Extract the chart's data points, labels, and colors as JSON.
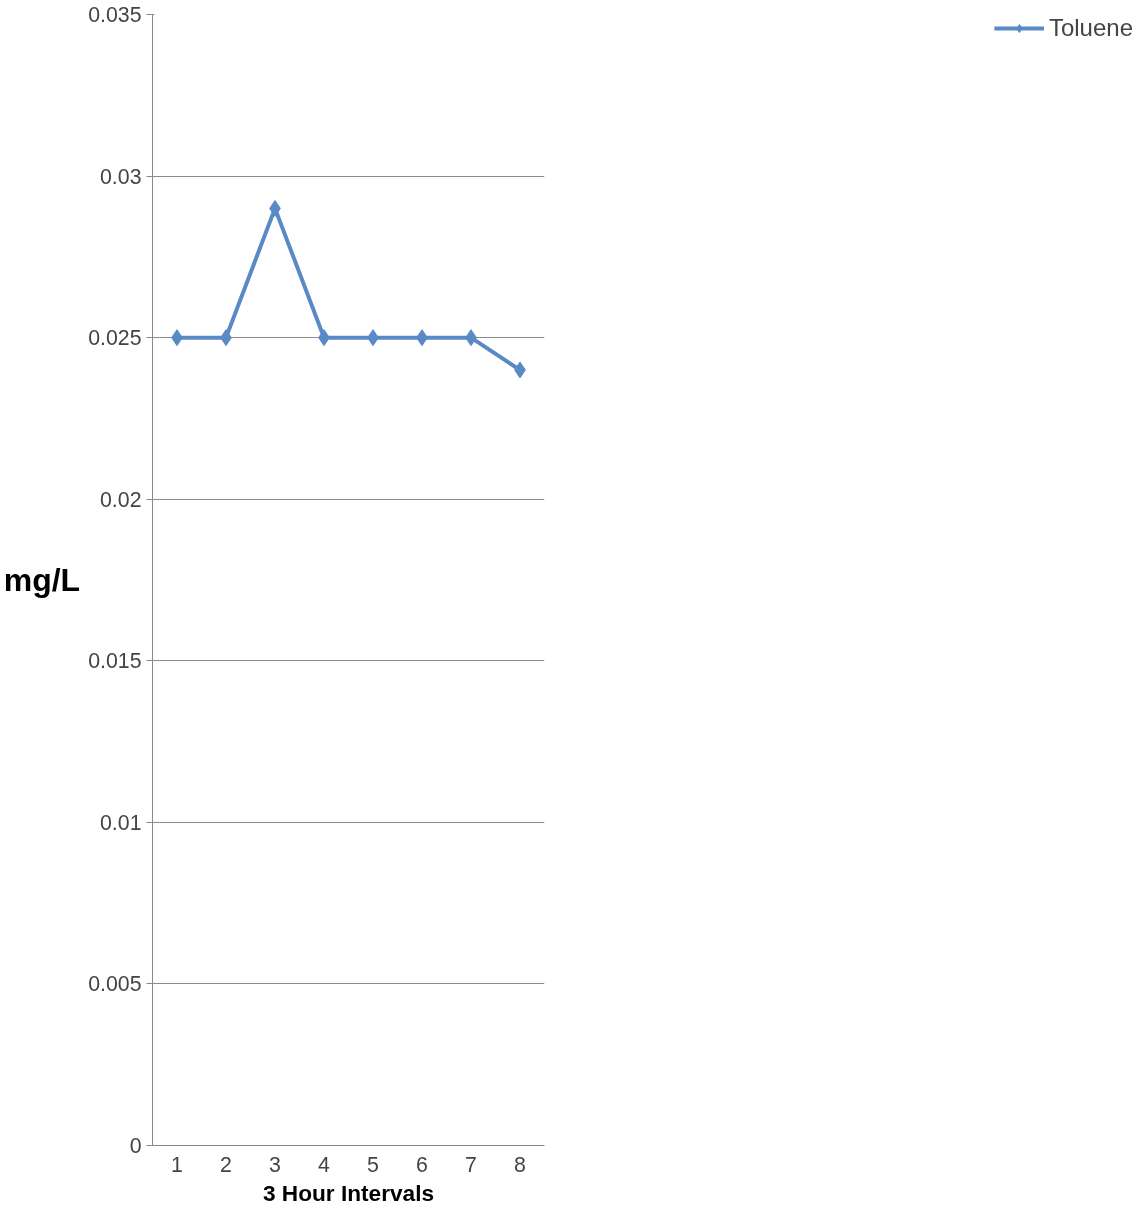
{
  "chart_data": {
    "type": "line",
    "xlabel": "3 Hour Intervals",
    "ylabel": "mg/L",
    "categories": [
      "1",
      "2",
      "3",
      "4",
      "5",
      "6",
      "7",
      "8"
    ],
    "series": [
      {
        "name": "Toluene",
        "color": "#5a8ac6",
        "values": [
          0.025,
          0.025,
          0.029,
          0.025,
          0.025,
          0.025,
          0.025,
          0.024
        ]
      }
    ],
    "ylim": [
      0,
      0.035
    ],
    "yticks": [
      0,
      0.005,
      0.01,
      0.015,
      0.02,
      0.025,
      0.03,
      0.035
    ],
    "grid": "y",
    "legend": "right",
    "marker": "diamond",
    "line_style": "solid"
  }
}
